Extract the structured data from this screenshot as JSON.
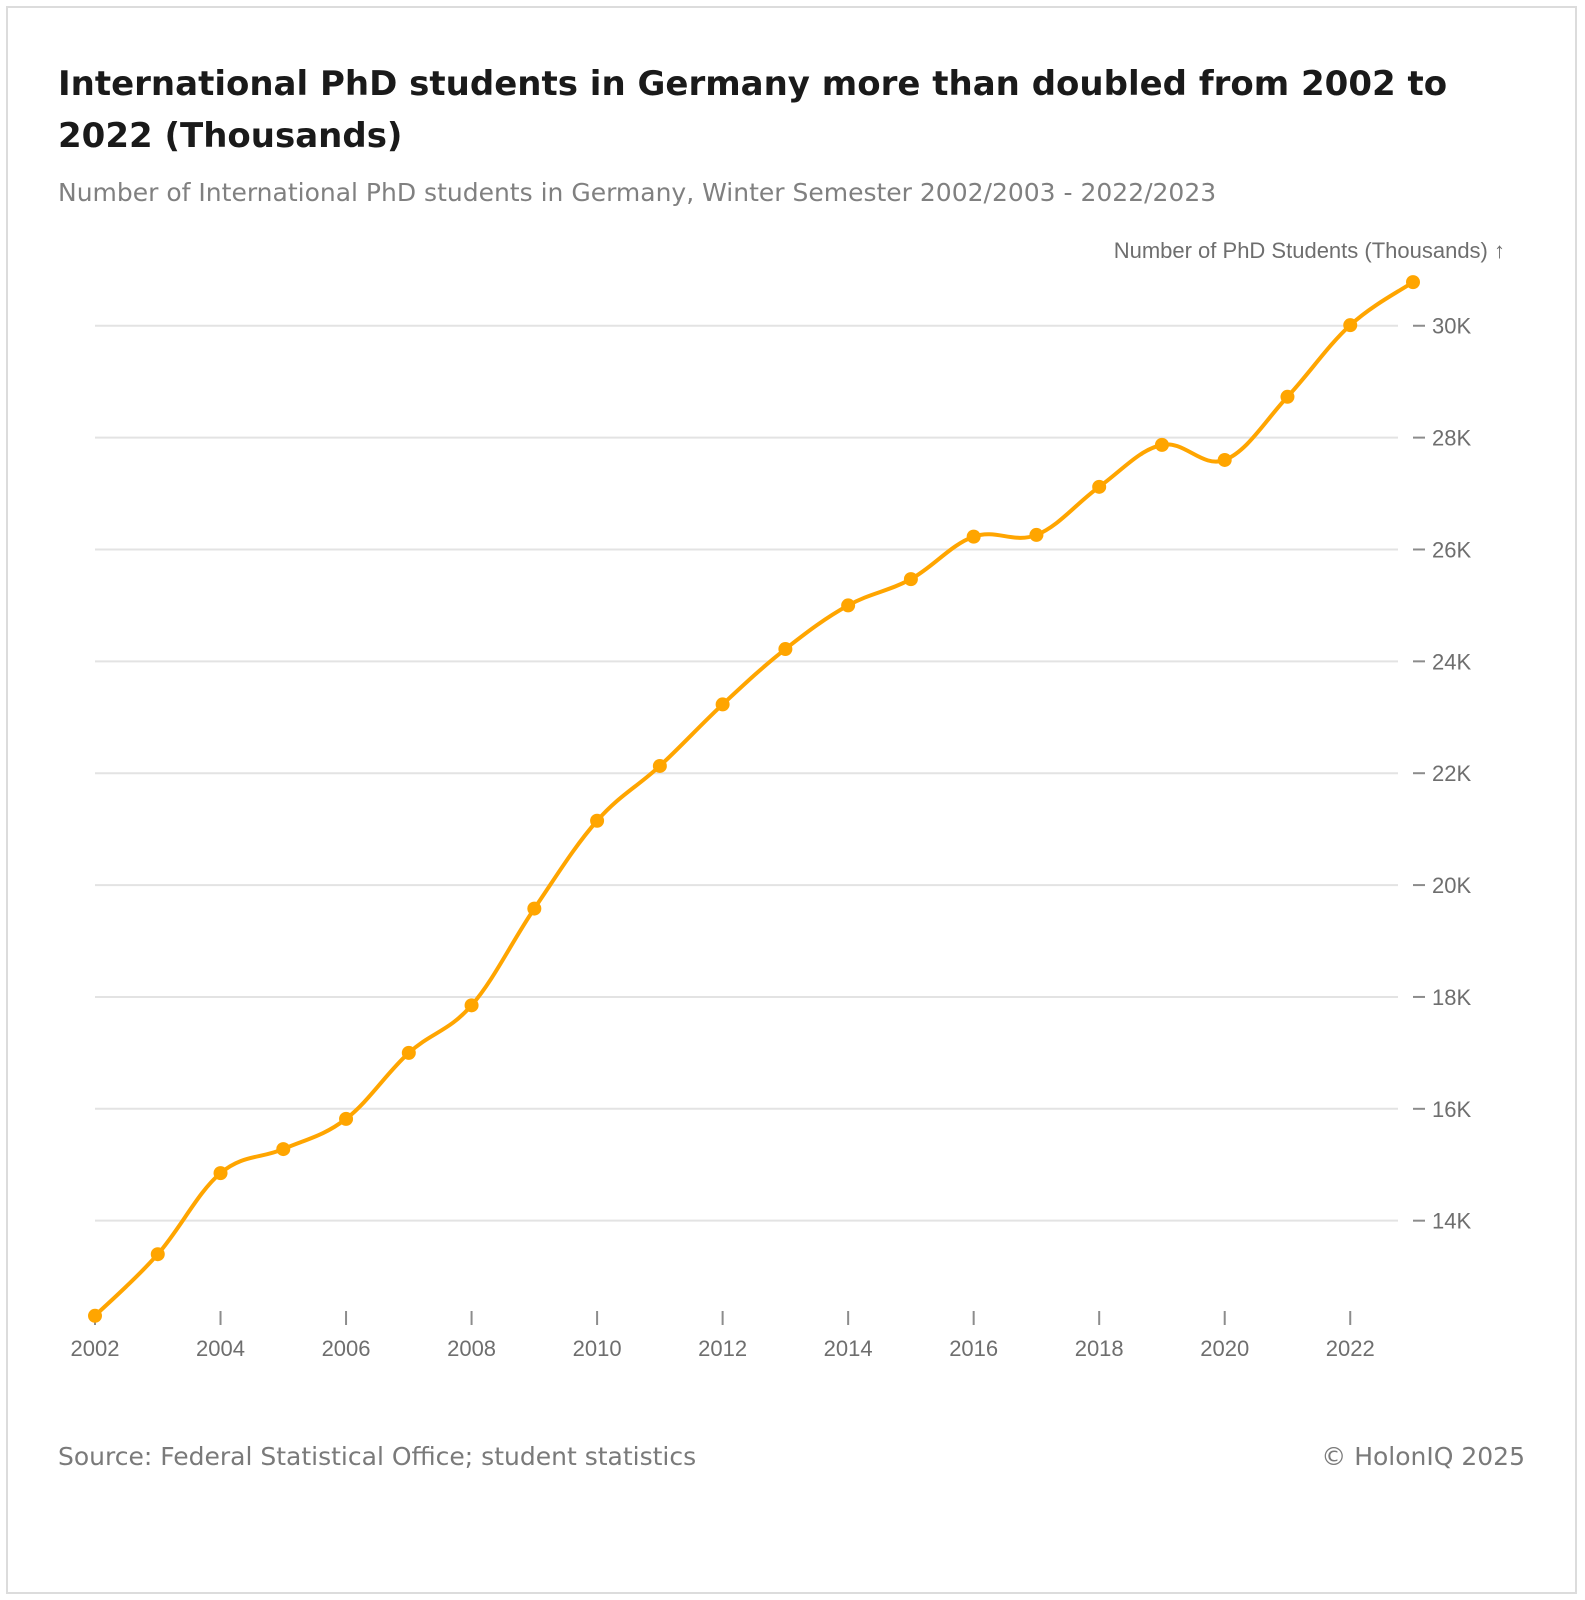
{
  "header": {
    "title": "International PhD students in Germany more than doubled from 2002 to 2022 (Thousands)",
    "subtitle": "Number of International PhD students in Germany, Winter Semester 2002/2003 - 2022/2023"
  },
  "footer": {
    "source": "Source: Federal Statistical Office; student statistics",
    "copyright": "© HolonIQ 2025"
  },
  "chart_data": {
    "type": "line",
    "title": "International PhD students in Germany more than doubled from 2002 to 2022 (Thousands)",
    "ylabel": "Number of PhD Students (Thousands) ↑",
    "xlabel": "",
    "x": [
      2002,
      2003,
      2004,
      2005,
      2006,
      2007,
      2008,
      2009,
      2010,
      2011,
      2012,
      2013,
      2014,
      2015,
      2016,
      2017,
      2018,
      2019,
      2020,
      2021,
      2022,
      2023
    ],
    "series": [
      {
        "name": "International PhD students",
        "color": "#ffa500",
        "values": [
          12300,
          13400,
          14850,
          15280,
          15820,
          17000,
          17850,
          19580,
          21150,
          22130,
          23230,
          24220,
          25000,
          25470,
          26230,
          26260,
          27120,
          27870,
          27600,
          28730,
          30010,
          30780
        ]
      }
    ],
    "xlim": [
      2002,
      2023
    ],
    "ylim": [
      12260,
      30800
    ],
    "x_ticks": [
      2002,
      2004,
      2006,
      2008,
      2010,
      2012,
      2014,
      2016,
      2018,
      2020,
      2022
    ],
    "x_tick_labels": [
      "2002",
      "2004",
      "2006",
      "2008",
      "2010",
      "2012",
      "2014",
      "2016",
      "2018",
      "2020",
      "2022"
    ],
    "y_ticks": [
      14000,
      16000,
      18000,
      20000,
      22000,
      24000,
      26000,
      28000,
      30000
    ],
    "y_tick_labels": [
      "14K",
      "16K",
      "18K",
      "20K",
      "22K",
      "24K",
      "26K",
      "28K",
      "30K"
    ],
    "grid": true,
    "y_axis_side": "right"
  }
}
